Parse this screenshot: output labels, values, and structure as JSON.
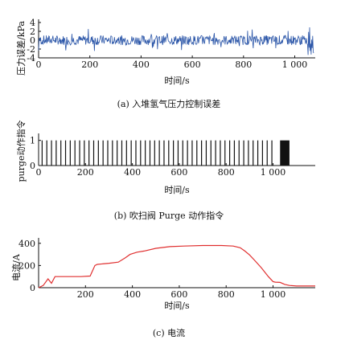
{
  "chart_data": [
    {
      "id": "a",
      "type": "line",
      "caption": "(a) 入堆氢气压力控制误差",
      "xlabel": "时间/s",
      "ylabel": "压力误差/kPa",
      "xlim": [
        0,
        1080
      ],
      "ylim": [
        -4,
        4
      ],
      "xticks": [
        0,
        200,
        400,
        600,
        800,
        1000
      ],
      "xtick_labels": [
        "0",
        "200",
        "400",
        "600",
        "800",
        "1 000"
      ],
      "yticks": [
        -4,
        -2,
        0,
        2,
        4
      ],
      "ytick_labels": [
        "-4",
        "-2",
        "0",
        "2",
        "4"
      ],
      "color": "#2a55a8",
      "series": [
        {
          "x_range": [
            0,
            1075
          ],
          "typical_range": [
            -1.5,
            1.5
          ],
          "spike_range": [
            -4,
            4
          ]
        }
      ]
    },
    {
      "id": "b",
      "type": "bar",
      "caption": "(b) 吹扫阀 Purge 动作指令",
      "xlabel": "时间/s",
      "ylabel": "purge动作指令",
      "xlim": [
        0,
        1180
      ],
      "ylim": [
        0,
        1.15
      ],
      "xticks": [
        0,
        200,
        400,
        600,
        800,
        1000
      ],
      "xtick_labels": [
        "0",
        "200",
        "400",
        "600",
        "800",
        "1 000"
      ],
      "yticks": [
        0,
        1
      ],
      "ytick_labels": [
        "0",
        "1"
      ],
      "pulse_times": [
        15,
        35,
        55,
        75,
        95,
        115,
        135,
        155,
        175,
        195,
        215,
        235,
        255,
        275,
        295,
        315,
        335,
        355,
        375,
        395,
        415,
        435,
        455,
        475,
        495,
        515,
        535,
        555,
        575,
        595,
        615,
        635,
        655,
        675,
        695,
        715,
        735,
        755,
        775,
        795,
        815,
        835,
        855,
        875,
        895,
        915,
        935,
        955,
        975,
        995
      ],
      "pulse_value": 1,
      "dense_block": [
        1030,
        1070
      ]
    },
    {
      "id": "c",
      "type": "line",
      "caption": "(c) 电流",
      "xlabel": "时间/s",
      "ylabel": "电流/A",
      "xlim": [
        0,
        1180
      ],
      "ylim": [
        0,
        420
      ],
      "xticks": [
        200,
        400,
        600,
        800,
        1000
      ],
      "xtick_labels": [
        "200",
        "400",
        "600",
        "800",
        "1 000"
      ],
      "yticks": [
        0,
        200,
        400
      ],
      "ytick_labels": [
        "0",
        "200",
        "400"
      ],
      "color": "#e03030",
      "series": [
        {
          "x": [
            0,
            20,
            40,
            55,
            70,
            90,
            120,
            180,
            220,
            240,
            250,
            300,
            340,
            370,
            390,
            420,
            450,
            500,
            560,
            620,
            700,
            780,
            830,
            860,
            880,
            900,
            920,
            950,
            980,
            1000,
            1010,
            1030,
            1050,
            1070,
            1100,
            1180
          ],
          "y": [
            0,
            20,
            80,
            40,
            100,
            100,
            100,
            100,
            105,
            200,
            210,
            220,
            230,
            270,
            300,
            320,
            330,
            355,
            370,
            375,
            380,
            380,
            375,
            360,
            330,
            295,
            250,
            180,
            100,
            55,
            50,
            48,
            30,
            20,
            15,
            15
          ]
        }
      ]
    }
  ]
}
